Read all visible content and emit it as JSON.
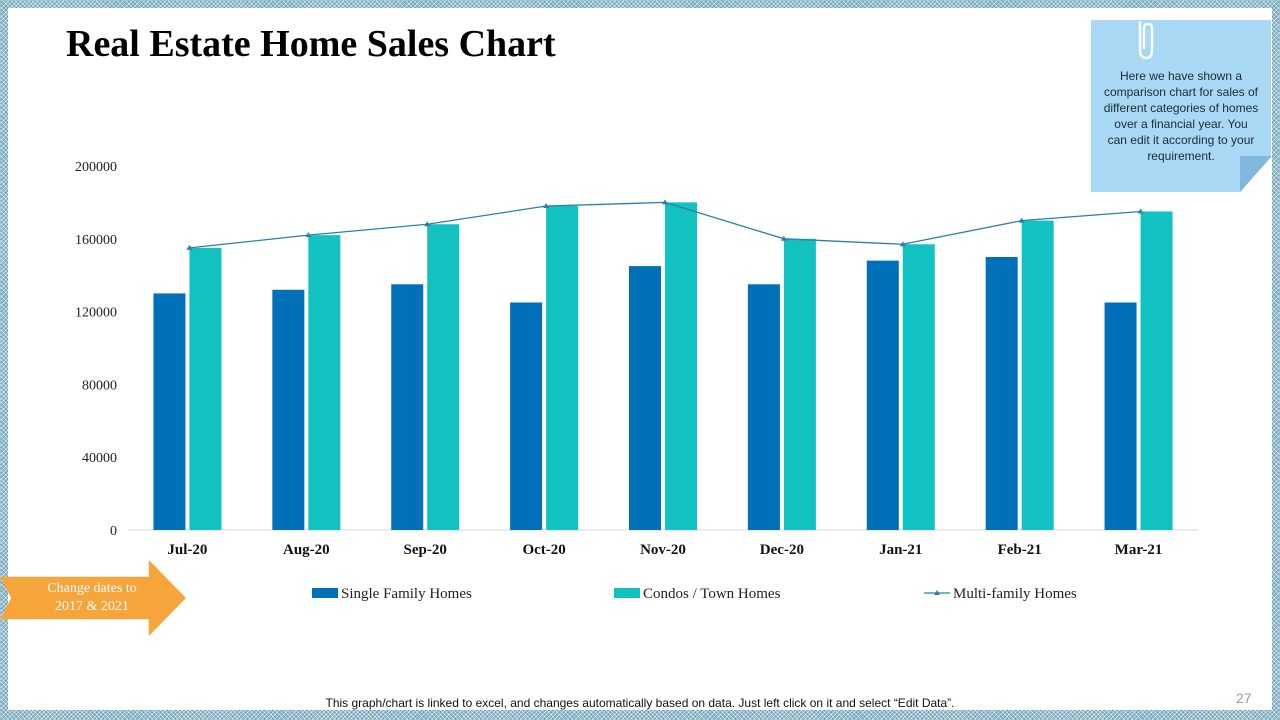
{
  "slide": {
    "title": "Real Estate Home Sales Chart",
    "note": "Here we have shown a comparison chart for sales of different categories of homes over a financial year. You can edit it according to your requirement.",
    "callout": [
      "Change dates to",
      "2017 & 2021"
    ],
    "footer": "This graph/chart is linked to excel, and changes automatically based on data. Just left click on it and select “Edit Data”.",
    "page_number": "27"
  },
  "colors": {
    "single": "#0070b8",
    "condos": "#12c2c0",
    "multi": "#2e7fa8",
    "callout": "#f6a53b",
    "note": "#a9d8f5"
  },
  "chart_data": {
    "type": "bar",
    "title": "",
    "xlabel": "",
    "ylabel": "",
    "categories": [
      "Jul-20",
      "Aug-20",
      "Sep-20",
      "Oct-20",
      "Nov-20",
      "Dec-20",
      "Jan-21",
      "Feb-21",
      "Mar-21"
    ],
    "ylim": [
      0,
      200000
    ],
    "yticks": [
      0,
      40000,
      80000,
      120000,
      160000,
      200000
    ],
    "grid": false,
    "legend": "bottom",
    "series": [
      {
        "name": "Single Family Homes",
        "type": "bar",
        "values": [
          130000,
          132000,
          135000,
          125000,
          145000,
          135000,
          148000,
          150000,
          125000
        ]
      },
      {
        "name": "Condos / Town Homes",
        "type": "bar",
        "values": [
          155000,
          162000,
          168000,
          178000,
          180000,
          160000,
          157000,
          170000,
          175000
        ]
      },
      {
        "name": "Multi-family Homes",
        "type": "line",
        "values": [
          155000,
          162000,
          168000,
          178000,
          180000,
          160000,
          157000,
          170000,
          175000
        ]
      }
    ]
  }
}
